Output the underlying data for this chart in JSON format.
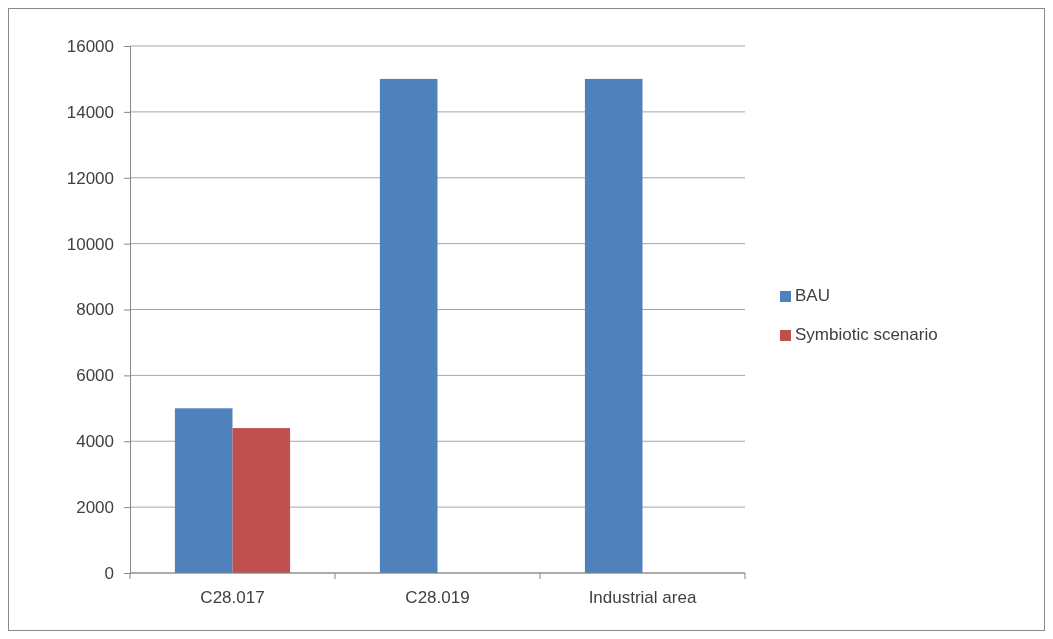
{
  "chart_data": {
    "type": "bar",
    "categories": [
      "C28.017",
      "C28.019",
      "Industrial area"
    ],
    "series": [
      {
        "name": "BAU",
        "color": "#4f81bd",
        "values": [
          5000,
          15000,
          15000
        ]
      },
      {
        "name": "Symbiotic scenario",
        "color": "#c0504d",
        "values": [
          4400,
          null,
          null
        ]
      }
    ],
    "ylim": [
      0,
      16000
    ],
    "yticks": [
      0,
      2000,
      4000,
      6000,
      8000,
      10000,
      12000,
      14000,
      16000
    ],
    "grid": "y",
    "legend": "right"
  }
}
